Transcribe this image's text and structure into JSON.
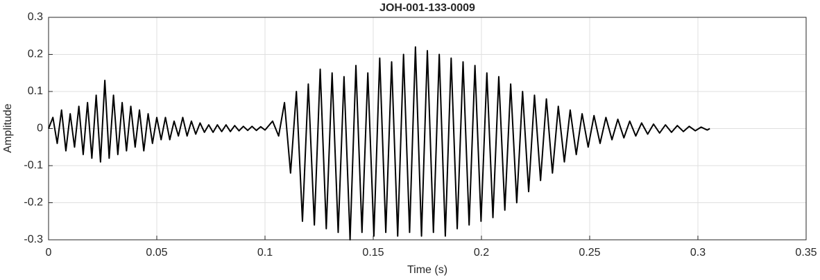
{
  "chart_data": {
    "type": "line",
    "title": "JOH-001-133-0009",
    "x_label": "Time (s)",
    "y_label": "Amplitude",
    "xlim": [
      0,
      0.35
    ],
    "ylim": [
      -0.3,
      0.3
    ],
    "xticks": [
      0,
      0.05,
      0.1,
      0.15,
      0.2,
      0.25,
      0.3,
      0.35
    ],
    "yticks": [
      -0.3,
      -0.2,
      -0.1,
      0,
      0.1,
      0.2,
      0.3
    ],
    "grid": true,
    "color": "#000000",
    "x": [
      0,
      0.002,
      0.004,
      0.006,
      0.008,
      0.01,
      0.012,
      0.014,
      0.016,
      0.018,
      0.02,
      0.022,
      0.024,
      0.026,
      0.028,
      0.03,
      0.032,
      0.034,
      0.036,
      0.038,
      0.04,
      0.042,
      0.044,
      0.046,
      0.048,
      0.05,
      0.052,
      0.054,
      0.056,
      0.058,
      0.06,
      0.062,
      0.064,
      0.066,
      0.068,
      0.07,
      0.072,
      0.074,
      0.076,
      0.078,
      0.08,
      0.082,
      0.084,
      0.086,
      0.088,
      0.09,
      0.092,
      0.094,
      0.096,
      0.098,
      0.1,
      0.1035,
      0.1063,
      0.109,
      0.1118,
      0.1145,
      0.1173,
      0.12,
      0.1228,
      0.1255,
      0.1283,
      0.131,
      0.1338,
      0.1365,
      0.1393,
      0.142,
      0.1448,
      0.1475,
      0.1503,
      0.153,
      0.1558,
      0.1585,
      0.1613,
      0.164,
      0.1668,
      0.1695,
      0.1723,
      0.175,
      0.1778,
      0.1805,
      0.1833,
      0.186,
      0.1888,
      0.1915,
      0.1943,
      0.197,
      0.1998,
      0.2025,
      0.2053,
      0.208,
      0.2108,
      0.2135,
      0.2163,
      0.219,
      0.2218,
      0.2245,
      0.2273,
      0.23,
      0.2328,
      0.2355,
      0.2383,
      0.241,
      0.2438,
      0.2465,
      0.2493,
      0.252,
      0.2548,
      0.2575,
      0.2603,
      0.263,
      0.2658,
      0.2685,
      0.2713,
      0.274,
      0.2768,
      0.2795,
      0.2823,
      0.285,
      0.2878,
      0.2905,
      0.2933,
      0.296,
      0.2988,
      0.3015,
      0.3043,
      0.3055
    ],
    "values": [
      0,
      0.03,
      -0.04,
      0.05,
      -0.06,
      0.04,
      -0.05,
      0.06,
      -0.07,
      0.07,
      -0.08,
      0.09,
      -0.09,
      0.13,
      -0.08,
      0.09,
      -0.07,
      0.07,
      -0.06,
      0.06,
      -0.05,
      0.05,
      -0.06,
      0.04,
      -0.04,
      0.03,
      -0.03,
      0.03,
      -0.03,
      0.02,
      -0.02,
      0.03,
      -0.02,
      0.02,
      -0.015,
      0.015,
      -0.01,
      0.01,
      -0.01,
      0.01,
      -0.008,
      0.01,
      -0.008,
      0.008,
      -0.006,
      0.006,
      -0.005,
      0.006,
      -0.005,
      0.005,
      -0.004,
      0.02,
      -0.02,
      0.07,
      -0.12,
      0.1,
      -0.25,
      0.12,
      -0.26,
      0.16,
      -0.27,
      0.15,
      -0.28,
      0.14,
      -0.3,
      0.17,
      -0.28,
      0.15,
      -0.29,
      0.19,
      -0.28,
      0.18,
      -0.29,
      0.2,
      -0.28,
      0.22,
      -0.29,
      0.21,
      -0.28,
      0.2,
      -0.29,
      0.19,
      -0.27,
      0.18,
      -0.26,
      0.17,
      -0.25,
      0.15,
      -0.24,
      0.14,
      -0.22,
      0.12,
      -0.2,
      0.1,
      -0.17,
      0.09,
      -0.14,
      0.08,
      -0.12,
      0.06,
      -0.09,
      0.05,
      -0.07,
      0.04,
      -0.05,
      0.035,
      -0.04,
      0.03,
      -0.03,
      0.025,
      -0.025,
      0.02,
      -0.02,
      0.015,
      -0.015,
      0.012,
      -0.012,
      0.01,
      -0.01,
      0.008,
      -0.008,
      0.006,
      -0.006,
      0.004,
      -0.004,
      0
    ]
  }
}
